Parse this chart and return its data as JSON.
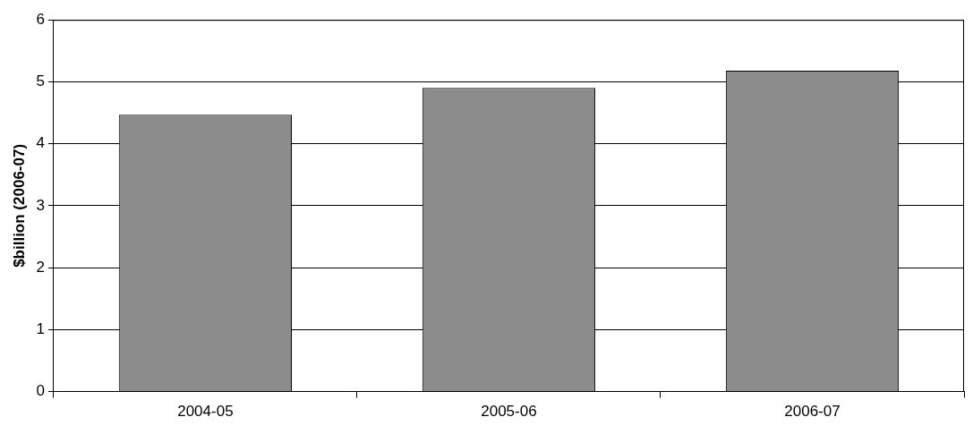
{
  "chart_data": {
    "type": "bar",
    "ylabel": "$billion (2006-07)",
    "categories": [
      "2004-05",
      "2005-06",
      "2006-07"
    ],
    "values": [
      4.47,
      4.9,
      5.18
    ],
    "color": "#8c8c8c",
    "ylim": [
      0,
      6
    ],
    "yticks": [
      0,
      1,
      2,
      3,
      4,
      5,
      6
    ],
    "grid": "y",
    "legend": false
  }
}
